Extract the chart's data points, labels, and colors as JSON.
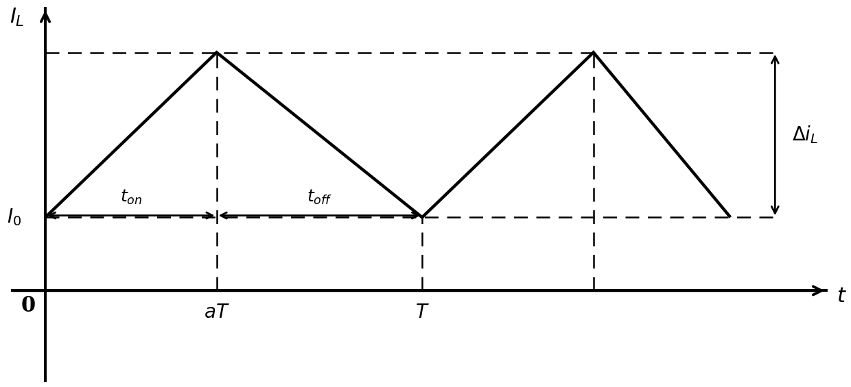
{
  "background_color": "#ffffff",
  "waveform_color": "#000000",
  "dashed_color": "#000000",
  "axis_color": "#000000",
  "I0": 2.0,
  "I_peak": 6.5,
  "t_aT": 2.5,
  "t_T": 5.5,
  "t_2aT": 8.0,
  "t_end": 10.0,
  "x_origin": 0.0,
  "y_origin": 0.0,
  "xlim": [
    -0.5,
    11.5
  ],
  "ylim": [
    -2.5,
    7.8
  ],
  "label_IL": "$I_L$",
  "label_t": "$t$",
  "label_0": "0",
  "label_I0": "$I_0$",
  "label_aT": "$aT$",
  "label_T": "$T$",
  "label_ton": "$t_{on}$",
  "label_toff": "$t_{off}$",
  "label_delta_iL": "$\\Delta i_L$"
}
